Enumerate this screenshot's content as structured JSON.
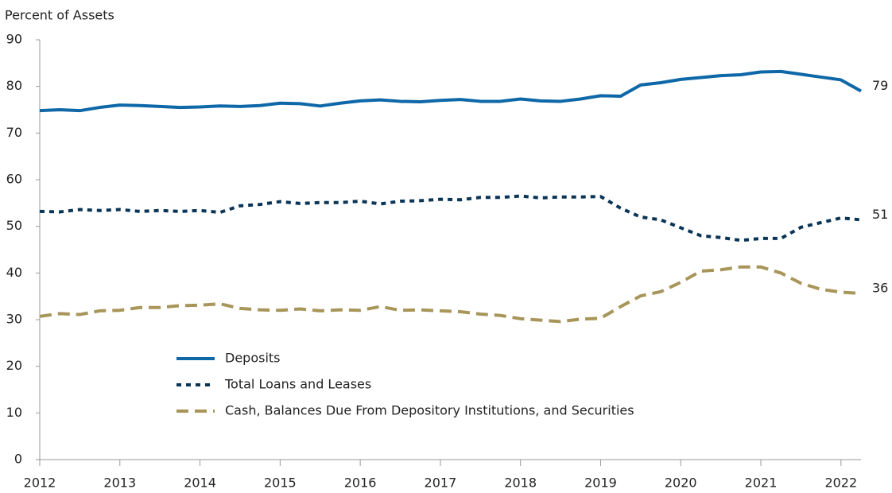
{
  "chart_data": {
    "type": "line",
    "y_axis_label": "Percent of Assets",
    "x": [
      2012,
      2012.25,
      2012.5,
      2012.75,
      2013,
      2013.25,
      2013.5,
      2013.75,
      2014,
      2014.25,
      2014.5,
      2014.75,
      2015,
      2015.25,
      2015.5,
      2015.75,
      2016,
      2016.25,
      2016.5,
      2016.75,
      2017,
      2017.25,
      2017.5,
      2017.75,
      2018,
      2018.25,
      2018.5,
      2018.75,
      2019,
      2019.25,
      2019.5,
      2019.75,
      2020,
      2020.25,
      2020.5,
      2020.75,
      2021,
      2021.25,
      2021.5,
      2021.75,
      2022,
      2022.25
    ],
    "series": [
      {
        "name": "Deposits",
        "color": "#0e68a8",
        "dash": "solid",
        "values": [
          74.8,
          75.0,
          74.8,
          75.5,
          76.0,
          75.9,
          75.7,
          75.5,
          75.6,
          75.8,
          75.7,
          75.9,
          76.4,
          76.3,
          75.8,
          76.4,
          76.9,
          77.1,
          76.8,
          76.7,
          77.0,
          77.2,
          76.8,
          76.8,
          77.3,
          76.9,
          76.8,
          77.3,
          78.0,
          77.9,
          80.3,
          80.8,
          81.5,
          81.9,
          82.3,
          82.5,
          83.1,
          83.2,
          82.6,
          82.0,
          81.4,
          79.0
        ],
        "value_labels": [
          null,
          null,
          null,
          null,
          null,
          null,
          null,
          null,
          null,
          null,
          null,
          null,
          null,
          null,
          null,
          null,
          null,
          null,
          null,
          null,
          null,
          null,
          null,
          null,
          null,
          null,
          null,
          null,
          null,
          null,
          null,
          null,
          null,
          null,
          null,
          null,
          null,
          null,
          null,
          null,
          null,
          "79"
        ]
      },
      {
        "name": "Total Loans and Leases",
        "color": "#0a3556",
        "dash": "dotted",
        "values": [
          53.2,
          53.1,
          53.6,
          53.4,
          53.6,
          53.2,
          53.4,
          53.2,
          53.4,
          53.0,
          54.4,
          54.7,
          55.3,
          54.9,
          55.1,
          55.1,
          55.4,
          54.8,
          55.4,
          55.5,
          55.8,
          55.7,
          56.2,
          56.2,
          56.5,
          56.1,
          56.3,
          56.3,
          56.4,
          53.9,
          52.0,
          51.4,
          49.7,
          48.0,
          47.6,
          47.0,
          47.4,
          47.4,
          49.8,
          50.8,
          51.8,
          51.4
        ],
        "value_labels": [
          null,
          null,
          null,
          null,
          null,
          null,
          null,
          null,
          null,
          null,
          null,
          null,
          null,
          null,
          null,
          null,
          null,
          null,
          null,
          null,
          null,
          null,
          null,
          null,
          null,
          null,
          null,
          null,
          null,
          null,
          null,
          null,
          null,
          null,
          null,
          null,
          null,
          null,
          null,
          null,
          null,
          "51"
        ]
      },
      {
        "name": "Cash, Balances Due From Depository Institutions, and Securities",
        "color": "#a89559",
        "dash": "dashed",
        "values": [
          30.7,
          31.3,
          31.1,
          31.9,
          32.0,
          32.6,
          32.6,
          33.0,
          33.1,
          33.4,
          32.4,
          32.1,
          32.0,
          32.3,
          31.9,
          32.1,
          32.0,
          32.8,
          32.0,
          32.1,
          31.9,
          31.7,
          31.2,
          30.9,
          30.2,
          29.9,
          29.6,
          30.1,
          30.3,
          32.8,
          35.1,
          36.0,
          38.0,
          40.4,
          40.7,
          41.3,
          41.3,
          40.0,
          37.8,
          36.5,
          35.9,
          35.6
        ],
        "value_labels": [
          null,
          null,
          null,
          null,
          null,
          null,
          null,
          null,
          null,
          null,
          null,
          null,
          null,
          null,
          null,
          null,
          null,
          null,
          null,
          null,
          null,
          null,
          null,
          null,
          null,
          null,
          null,
          null,
          null,
          null,
          null,
          null,
          null,
          null,
          null,
          null,
          null,
          null,
          null,
          null,
          null,
          "36"
        ]
      }
    ],
    "xlim": [
      2012,
      2022.25
    ],
    "xticks": [
      2012,
      2013,
      2014,
      2015,
      2016,
      2017,
      2018,
      2019,
      2020,
      2021,
      2022
    ],
    "ylim": [
      0,
      90
    ],
    "yticks": [
      0,
      10,
      20,
      30,
      40,
      50,
      60,
      70,
      80,
      90
    ],
    "grid": false,
    "legend": "lower left"
  }
}
